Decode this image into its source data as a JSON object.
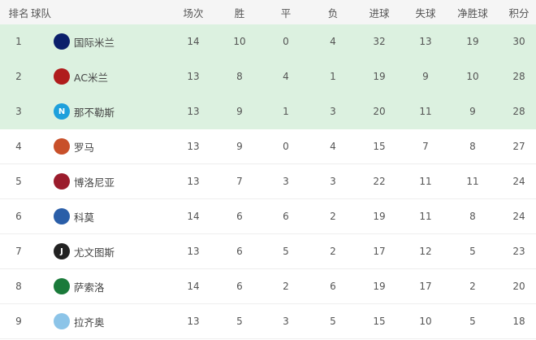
{
  "headers": {
    "rank": "排名",
    "team": "球队",
    "played": "场次",
    "won": "胜",
    "drawn": "平",
    "lost": "负",
    "gf": "进球",
    "ga": "失球",
    "gd": "净胜球",
    "pts": "积分"
  },
  "colors": {
    "highlight": "#dcf1e0",
    "header_bg": "#f5f5f5"
  },
  "rows": [
    {
      "rank": "1",
      "team": "国际米兰",
      "logo": "inter-logo-icon",
      "logo_color": "#0b1f6b",
      "logo_text": "",
      "played": "14",
      "won": "10",
      "drawn": "0",
      "lost": "4",
      "gf": "32",
      "ga": "13",
      "gd": "19",
      "pts": "30",
      "highlight": true
    },
    {
      "rank": "2",
      "team": "AC米兰",
      "logo": "ac-milan-logo-icon",
      "logo_color": "#b01c1c",
      "logo_text": "",
      "played": "13",
      "won": "8",
      "drawn": "4",
      "lost": "1",
      "gf": "19",
      "ga": "9",
      "gd": "10",
      "pts": "28",
      "highlight": true
    },
    {
      "rank": "3",
      "team": "那不勒斯",
      "logo": "napoli-logo-icon",
      "logo_color": "#1ea0dc",
      "logo_text": "N",
      "played": "13",
      "won": "9",
      "drawn": "1",
      "lost": "3",
      "gf": "20",
      "ga": "11",
      "gd": "9",
      "pts": "28",
      "highlight": true
    },
    {
      "rank": "4",
      "team": "罗马",
      "logo": "roma-logo-icon",
      "logo_color": "#c8502a",
      "logo_text": "",
      "played": "13",
      "won": "9",
      "drawn": "0",
      "lost": "4",
      "gf": "15",
      "ga": "7",
      "gd": "8",
      "pts": "27",
      "highlight": false
    },
    {
      "rank": "5",
      "team": "博洛尼亚",
      "logo": "bologna-logo-icon",
      "logo_color": "#9b1c2c",
      "logo_text": "",
      "played": "13",
      "won": "7",
      "drawn": "3",
      "lost": "3",
      "gf": "22",
      "ga": "11",
      "gd": "11",
      "pts": "24",
      "highlight": false
    },
    {
      "rank": "6",
      "team": "科莫",
      "logo": "como-logo-icon",
      "logo_color": "#2a5ea8",
      "logo_text": "",
      "played": "14",
      "won": "6",
      "drawn": "6",
      "lost": "2",
      "gf": "19",
      "ga": "11",
      "gd": "8",
      "pts": "24",
      "highlight": false
    },
    {
      "rank": "7",
      "team": "尤文图斯",
      "logo": "juventus-logo-icon",
      "logo_color": "#222222",
      "logo_text": "J",
      "played": "13",
      "won": "6",
      "drawn": "5",
      "lost": "2",
      "gf": "17",
      "ga": "12",
      "gd": "5",
      "pts": "23",
      "highlight": false
    },
    {
      "rank": "8",
      "team": "萨索洛",
      "logo": "sassuolo-logo-icon",
      "logo_color": "#1a7a3a",
      "logo_text": "",
      "played": "14",
      "won": "6",
      "drawn": "2",
      "lost": "6",
      "gf": "19",
      "ga": "17",
      "gd": "2",
      "pts": "20",
      "highlight": false
    },
    {
      "rank": "9",
      "team": "拉齐奥",
      "logo": "lazio-logo-icon",
      "logo_color": "#8cc4e8",
      "logo_text": "",
      "played": "13",
      "won": "5",
      "drawn": "3",
      "lost": "5",
      "gf": "15",
      "ga": "10",
      "gd": "5",
      "pts": "18",
      "highlight": false
    }
  ]
}
